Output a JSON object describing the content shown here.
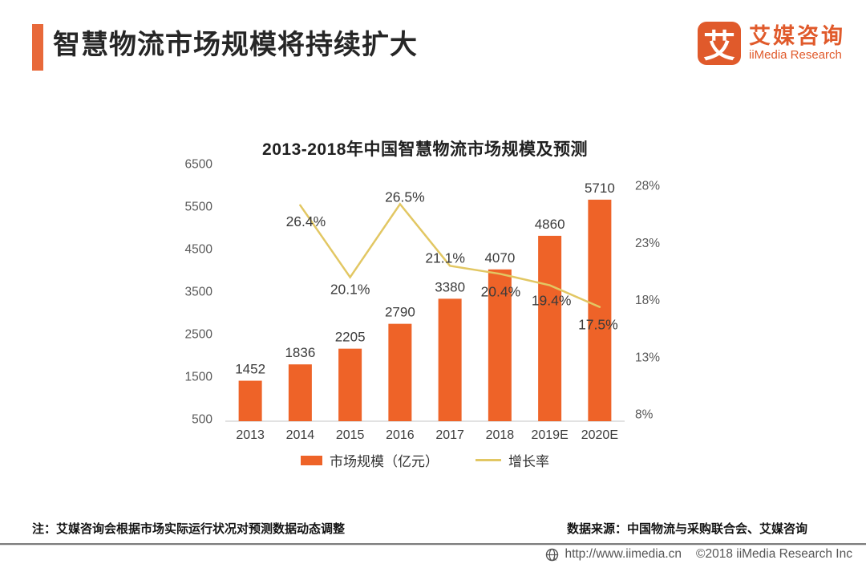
{
  "header": {
    "title": "智慧物流市场规模将持续扩大",
    "logo": {
      "mark": "艾",
      "name_cn": "艾媒咨询",
      "name_en": "iiMedia Research"
    }
  },
  "chart_data": {
    "type": "bar",
    "title": "2013-2018年中国智慧物流市场规模及预测",
    "categories": [
      "2013",
      "2014",
      "2015",
      "2016",
      "2017",
      "2018",
      "2019E",
      "2020E"
    ],
    "series": [
      {
        "name": "市场规模（亿元）",
        "type": "bar",
        "axis": "left",
        "color": "#EE6328",
        "values": [
          1452,
          1836,
          2205,
          2790,
          3380,
          4070,
          4860,
          5710
        ]
      },
      {
        "name": "增长率",
        "type": "line",
        "axis": "right",
        "color": "#E2C763",
        "x_start_index": 1,
        "values": [
          26.4,
          20.1,
          26.5,
          21.1,
          20.4,
          19.4,
          17.5
        ],
        "labels": [
          "26.4%",
          "20.1%",
          "26.5%",
          "21.1%",
          "20.4%",
          "19.4%",
          "17.5%"
        ]
      }
    ],
    "left_axis": {
      "min": 500,
      "max": 6500,
      "ticks": [
        "6500",
        "5500",
        "4500",
        "3500",
        "2500",
        "1500",
        "500"
      ]
    },
    "right_axis": {
      "min": 8,
      "max": 28,
      "ticks": [
        "28%",
        "23%",
        "18%",
        "13%",
        "8%"
      ]
    },
    "grid": false,
    "legend_position": "bottom"
  },
  "footer": {
    "note": "注：艾媒咨询会根据市场实际运行状况对预测数据动态调整",
    "source": "数据来源：中国物流与采购联合会、艾媒咨询",
    "url": "http://www.iimedia.cn",
    "copyright": "©2018  iiMedia Research Inc"
  }
}
